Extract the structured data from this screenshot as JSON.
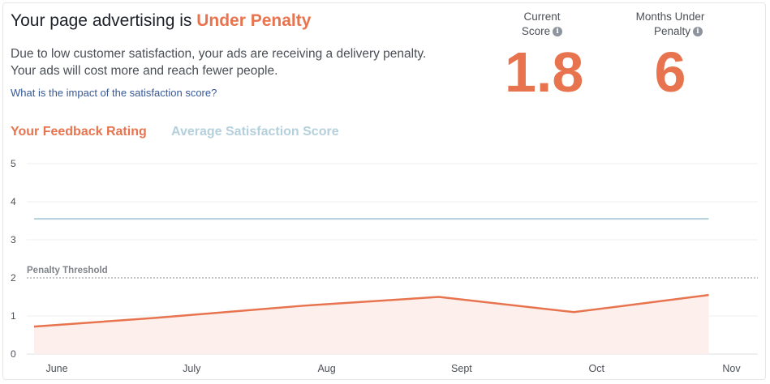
{
  "header": {
    "title_prefix": "Your page advertising is",
    "status": "Under Penalty",
    "description_line1": "Due to low customer satisfaction, your ads are receiving a delivery penalty.",
    "description_line2": "Your ads will cost more and reach fewer people.",
    "impact_link": "What is the impact of the satisfaction score?"
  },
  "metrics": {
    "current_score": {
      "label_line1": "Current",
      "label_line2": "Score",
      "value": "1.8",
      "icon": "info-icon"
    },
    "months_under_penalty": {
      "label_line1": "Months Under",
      "label_line2": "Penalty",
      "value": "6",
      "icon": "info-icon"
    }
  },
  "legend": {
    "feedback": "Your Feedback Rating",
    "average": "Average Satisfaction Score"
  },
  "colors": {
    "accent": "#e8744f",
    "average_line": "#b4d0dc",
    "fill": "#fdefec",
    "link": "#365899"
  },
  "chart_data": {
    "type": "area",
    "categories": [
      "June",
      "July",
      "Aug",
      "Sept",
      "Oct",
      "Nov"
    ],
    "ylim": [
      0,
      5
    ],
    "yticks": [
      0,
      1,
      2,
      3,
      4,
      5
    ],
    "grid": true,
    "series": [
      {
        "name": "Your Feedback Rating",
        "x": [
          0,
          0.9,
          2,
          3,
          4,
          5
        ],
        "values": [
          0.72,
          0.95,
          1.27,
          1.5,
          1.1,
          1.55
        ],
        "color": "#e8744f",
        "filled": true
      },
      {
        "name": "Average Satisfaction Score",
        "x": [
          0,
          5
        ],
        "values": [
          3.55,
          3.55
        ],
        "color": "#b4d0dc",
        "filled": false
      }
    ],
    "threshold": {
      "label": "Penalty Threshold",
      "value": 2
    }
  }
}
